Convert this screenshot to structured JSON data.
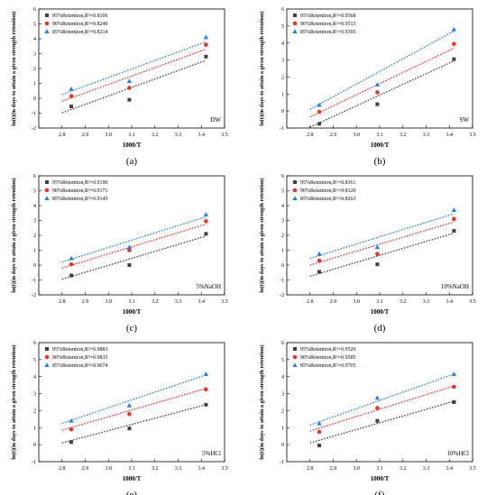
{
  "chart_data": [
    {
      "type": "scatter",
      "panel_label": "(a)",
      "annotation": "DW",
      "xlabel": "1000/T",
      "ylabel": "ln(t)(in days to attain a given strength retention)",
      "xlim": [
        2.7,
        3.5
      ],
      "ylim": [
        -2,
        6
      ],
      "xticks": [
        "2.8",
        "2.9",
        "3.0",
        "3.1",
        "3.2",
        "3.3",
        "3.4",
        "3.5"
      ],
      "yticks": [
        "-2",
        "-1",
        "0",
        "1",
        "2",
        "3",
        "4",
        "5",
        "6"
      ],
      "legend_position": "top-left",
      "series": [
        {
          "name": "95%Retention,R²=0.8106",
          "color": "#404040",
          "marker": "square",
          "x": [
            2.84,
            3.09,
            3.42
          ],
          "y": [
            -0.55,
            -0.1,
            2.8
          ],
          "fit": [
            -0.98,
            2.55
          ]
        },
        {
          "name": "90%Retention,R²=0.8240",
          "color": "#e8332b",
          "marker": "circle",
          "x": [
            2.84,
            3.09,
            3.42
          ],
          "y": [
            0.15,
            0.7,
            3.6
          ],
          "fit": [
            -0.2,
            3.3
          ]
        },
        {
          "name": "85%Retention,R²=0.8214",
          "color": "#2a7de1",
          "marker": "triangle",
          "x": [
            2.84,
            3.09,
            3.42
          ],
          "y": [
            0.62,
            1.15,
            4.1
          ],
          "fit": [
            0.25,
            3.8
          ]
        }
      ]
    },
    {
      "type": "scatter",
      "panel_label": "(b)",
      "annotation": "SW",
      "xlabel": "1000/T",
      "ylabel": "ln(t)(in days to attain a given strength retention)",
      "xlim": [
        2.7,
        3.5
      ],
      "ylim": [
        -1,
        6
      ],
      "xticks": [
        "2.8",
        "2.9",
        "3.0",
        "3.1",
        "3.2",
        "3.3",
        "3.4",
        "3.5"
      ],
      "yticks": [
        "-1",
        "0",
        "1",
        "2",
        "3",
        "4",
        "5",
        "6"
      ],
      "legend_position": "top-left",
      "series": [
        {
          "name": "95%Retention,R²=0.9568",
          "color": "#404040",
          "marker": "square",
          "x": [
            2.84,
            3.09,
            3.42
          ],
          "y": [
            -0.75,
            0.4,
            3.05
          ],
          "fit": [
            -0.95,
            2.95
          ]
        },
        {
          "name": "90%Retention,R²=0.9513",
          "color": "#e8332b",
          "marker": "circle",
          "x": [
            2.84,
            3.09,
            3.42
          ],
          "y": [
            -0.05,
            1.1,
            3.95
          ],
          "fit": [
            -0.35,
            3.7
          ]
        },
        {
          "name": "85%Retention,R²=0.9395",
          "color": "#2a7de1",
          "marker": "triangle",
          "x": [
            2.84,
            3.09,
            3.42
          ],
          "y": [
            0.35,
            1.55,
            4.8
          ],
          "fit": [
            0.1,
            4.7
          ]
        }
      ]
    },
    {
      "type": "scatter",
      "panel_label": "(c)",
      "annotation": "5%NaOH",
      "xlabel": "1000/T",
      "ylabel": "ln(t)(in days to attain a given strength retention)",
      "xlim": [
        2.7,
        3.5
      ],
      "ylim": [
        -2,
        6
      ],
      "xticks": [
        "2.8",
        "2.9",
        "3.0",
        "3.1",
        "3.2",
        "3.3",
        "3.4",
        "3.5"
      ],
      "yticks": [
        "-2",
        "-1",
        "0",
        "1",
        "2",
        "3",
        "4",
        "5",
        "6"
      ],
      "legend_position": "top-left",
      "series": [
        {
          "name": "95%Retention,R²=0.9190",
          "color": "#404040",
          "marker": "square",
          "x": [
            2.84,
            3.09,
            3.42
          ],
          "y": [
            -0.7,
            0.0,
            2.1
          ],
          "fit": [
            -0.95,
            1.95
          ]
        },
        {
          "name": "90%Retention,R²=0.9171",
          "color": "#e8332b",
          "marker": "circle",
          "x": [
            2.84,
            3.09,
            3.42
          ],
          "y": [
            0.05,
            1.0,
            2.95
          ],
          "fit": [
            -0.2,
            2.75
          ]
        },
        {
          "name": "85%Retention,R²=0.9145",
          "color": "#2a7de1",
          "marker": "triangle",
          "x": [
            2.84,
            3.09,
            3.42
          ],
          "y": [
            0.45,
            1.2,
            3.4
          ],
          "fit": [
            0.2,
            3.25
          ]
        }
      ]
    },
    {
      "type": "scatter",
      "panel_label": "(d)",
      "annotation": "10%NaOH",
      "xlabel": "1000/T",
      "ylabel": "ln(t)(in days to attain a given strength retention)",
      "xlim": [
        2.7,
        3.5
      ],
      "ylim": [
        -2,
        6
      ],
      "xticks": [
        "2.8",
        "2.9",
        "3.0",
        "3.1",
        "3.2",
        "3.3",
        "3.4",
        "3.5"
      ],
      "yticks": [
        "-2",
        "-1",
        "0",
        "1",
        "2",
        "3",
        "4",
        "5",
        "6"
      ],
      "legend_position": "top-left",
      "series": [
        {
          "name": "95%Retention,R²=0.8361",
          "color": "#404040",
          "marker": "square",
          "x": [
            2.84,
            3.09,
            3.42
          ],
          "y": [
            -0.45,
            0.05,
            2.3
          ],
          "fit": [
            -0.75,
            2.15
          ]
        },
        {
          "name": "90%Retention,R²=0.8320",
          "color": "#e8332b",
          "marker": "circle",
          "x": [
            2.84,
            3.09,
            3.42
          ],
          "y": [
            0.3,
            0.75,
            3.1
          ],
          "fit": [
            0.0,
            2.9
          ]
        },
        {
          "name": "85%Retention,R²=0.8263",
          "color": "#2a7de1",
          "marker": "triangle",
          "x": [
            2.84,
            3.09,
            3.42
          ],
          "y": [
            0.75,
            1.2,
            3.7
          ],
          "fit": [
            0.45,
            3.45
          ]
        }
      ]
    },
    {
      "type": "scatter",
      "panel_label": "(e)",
      "annotation": "5%HCl",
      "xlabel": "1000/T",
      "ylabel": "ln(t)(in days to attain a given strength retention)",
      "xlim": [
        2.7,
        3.5
      ],
      "ylim": [
        -1,
        6
      ],
      "xticks": [
        "2.8",
        "2.9",
        "3.0",
        "3.1",
        "3.2",
        "3.3",
        "3.4",
        "3.5"
      ],
      "yticks": [
        "-1",
        "0",
        "1",
        "2",
        "3",
        "4",
        "5",
        "6"
      ],
      "legend_position": "top-left",
      "series": [
        {
          "name": "95%Retention,R²=0.9883",
          "color": "#404040",
          "marker": "square",
          "x": [
            2.84,
            3.09,
            3.42
          ],
          "y": [
            0.15,
            0.95,
            2.35
          ],
          "fit": [
            0.1,
            2.35
          ]
        },
        {
          "name": "90%Retention,R²=0.9835",
          "color": "#e8332b",
          "marker": "circle",
          "x": [
            2.84,
            3.09,
            3.42
          ],
          "y": [
            0.9,
            1.8,
            3.25
          ],
          "fit": [
            0.85,
            3.3
          ]
        },
        {
          "name": "85%Retention,R²=0.9674",
          "color": "#2a7de1",
          "marker": "triangle",
          "x": [
            2.84,
            3.09,
            3.42
          ],
          "y": [
            1.4,
            2.3,
            4.15
          ],
          "fit": [
            1.25,
            4.1
          ]
        }
      ]
    },
    {
      "type": "scatter",
      "panel_label": "(f)",
      "annotation": "10%HCl",
      "xlabel": "1000/T",
      "ylabel": "ln(t)(in days to attain a given strength retention)",
      "xlim": [
        2.7,
        3.5
      ],
      "ylim": [
        -1,
        6
      ],
      "xticks": [
        "2.8",
        "2.9",
        "3.0",
        "3.1",
        "3.2",
        "3.3",
        "3.4",
        "3.5"
      ],
      "yticks": [
        "-1",
        "0",
        "1",
        "2",
        "3",
        "4",
        "5",
        "6"
      ],
      "legend_position": "top-left",
      "series": [
        {
          "name": "95%Retention,R²=0.9529",
          "color": "#404040",
          "marker": "square",
          "x": [
            2.84,
            3.09,
            3.42
          ],
          "y": [
            -0.05,
            1.4,
            2.5
          ],
          "fit": [
            0.1,
            2.55
          ]
        },
        {
          "name": "90%Retention,R²=0.9585",
          "color": "#e8332b",
          "marker": "circle",
          "x": [
            2.84,
            3.09,
            3.42
          ],
          "y": [
            0.75,
            2.15,
            3.4
          ],
          "fit": [
            0.8,
            3.45
          ]
        },
        {
          "name": "85%Retention,R²=0.9705",
          "color": "#2a7de1",
          "marker": "triangle",
          "x": [
            2.84,
            3.09,
            3.42
          ],
          "y": [
            1.25,
            2.75,
            4.15
          ],
          "fit": [
            1.15,
            4.15
          ]
        }
      ]
    }
  ]
}
